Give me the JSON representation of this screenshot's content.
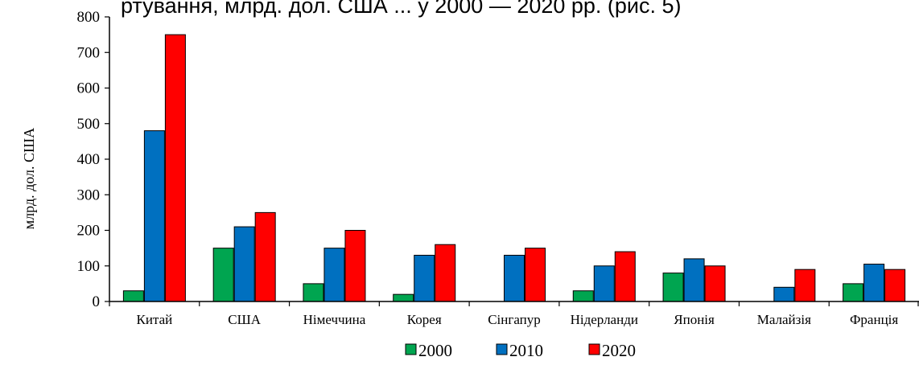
{
  "header": {
    "cropped_text": "ртування, млрд. дол. США ... у 2000 — 2020 рр. (рис. 5)"
  },
  "chart_data": {
    "type": "bar",
    "title": "",
    "xlabel": "",
    "ylabel": "млрд. дол. США",
    "ylim": [
      0,
      800
    ],
    "yticks": [
      0,
      100,
      200,
      300,
      400,
      500,
      600,
      700,
      800
    ],
    "grid": false,
    "legend_position": "bottom",
    "categories": [
      "Китай",
      "США",
      "Німеччина",
      "Корея",
      "Сінгапур",
      "Нідерланди",
      "Японія",
      "Малайзія",
      "Франція"
    ],
    "series": [
      {
        "name": "2000",
        "color": "#00a550",
        "values": [
          30,
          150,
          50,
          20,
          0,
          30,
          80,
          0,
          50
        ]
      },
      {
        "name": "2010",
        "color": "#0070c0",
        "values": [
          480,
          210,
          150,
          130,
          130,
          100,
          120,
          40,
          105
        ]
      },
      {
        "name": "2020",
        "color": "#ff0000",
        "values": [
          750,
          250,
          200,
          160,
          150,
          140,
          100,
          90,
          90
        ]
      }
    ]
  }
}
